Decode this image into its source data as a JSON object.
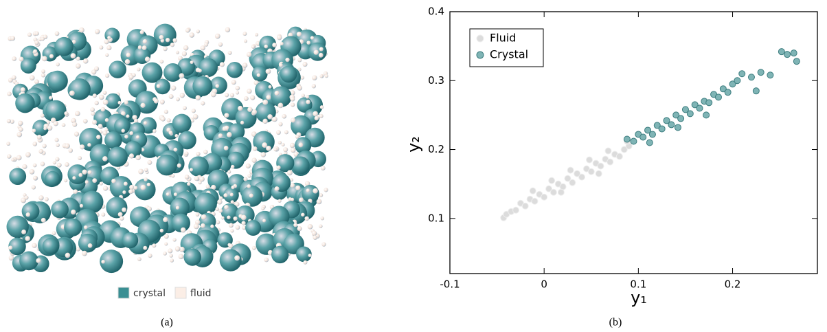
{
  "panel_a": {
    "legend": [
      {
        "name": "crystal",
        "color": "#3a8f93"
      },
      {
        "name": "fluid",
        "color": "#fbeee6"
      }
    ],
    "caption": "(a)"
  },
  "chart_data": {
    "type": "scatter",
    "caption": "(b)",
    "xlabel": "y₁",
    "ylabel": "y₂",
    "xlim": [
      -0.1,
      0.29
    ],
    "ylim": [
      0.02,
      0.4
    ],
    "xticks": [
      -0.1,
      0,
      0.1,
      0.2
    ],
    "yticks": [
      0.1,
      0.2,
      0.3,
      0.4
    ],
    "legend": "upper left",
    "series": [
      {
        "name": "Fluid",
        "color": "#dcdcdc",
        "edge": "#eeeeee",
        "x": [
          -0.043,
          -0.04,
          -0.035,
          -0.03,
          -0.025,
          -0.02,
          -0.015,
          -0.01,
          -0.005,
          0,
          0.005,
          0.01,
          0.015,
          0.02,
          0.025,
          0.03,
          0.035,
          0.04,
          0.045,
          0.05,
          0.055,
          0.06,
          0.065,
          0.07,
          0.075,
          0.08,
          0.085,
          0.09,
          -0.012,
          0.008,
          0.028,
          0.048,
          0.068,
          0.088,
          0.018,
          0.058
        ],
        "values": [
          0.101,
          0.106,
          0.11,
          0.112,
          0.122,
          0.118,
          0.128,
          0.125,
          0.135,
          0.131,
          0.143,
          0.138,
          0.15,
          0.146,
          0.158,
          0.152,
          0.165,
          0.16,
          0.172,
          0.168,
          0.18,
          0.176,
          0.186,
          0.182,
          0.193,
          0.19,
          0.2,
          0.205,
          0.14,
          0.155,
          0.17,
          0.185,
          0.198,
          0.212,
          0.138,
          0.165
        ]
      },
      {
        "name": "Crystal",
        "color": "#7fb4b5",
        "edge": "#3b7c7e",
        "x": [
          0.088,
          0.095,
          0.1,
          0.105,
          0.11,
          0.115,
          0.12,
          0.125,
          0.13,
          0.135,
          0.14,
          0.145,
          0.15,
          0.155,
          0.16,
          0.165,
          0.17,
          0.175,
          0.18,
          0.185,
          0.19,
          0.195,
          0.2,
          0.205,
          0.21,
          0.22,
          0.23,
          0.24,
          0.252,
          0.258,
          0.265,
          0.268,
          0.112,
          0.142,
          0.172,
          0.225
        ],
        "values": [
          0.215,
          0.212,
          0.222,
          0.218,
          0.228,
          0.222,
          0.235,
          0.23,
          0.242,
          0.236,
          0.25,
          0.245,
          0.258,
          0.252,
          0.265,
          0.26,
          0.27,
          0.268,
          0.28,
          0.276,
          0.288,
          0.283,
          0.295,
          0.3,
          0.31,
          0.305,
          0.312,
          0.308,
          0.342,
          0.338,
          0.34,
          0.328,
          0.21,
          0.232,
          0.25,
          0.285
        ]
      }
    ]
  }
}
